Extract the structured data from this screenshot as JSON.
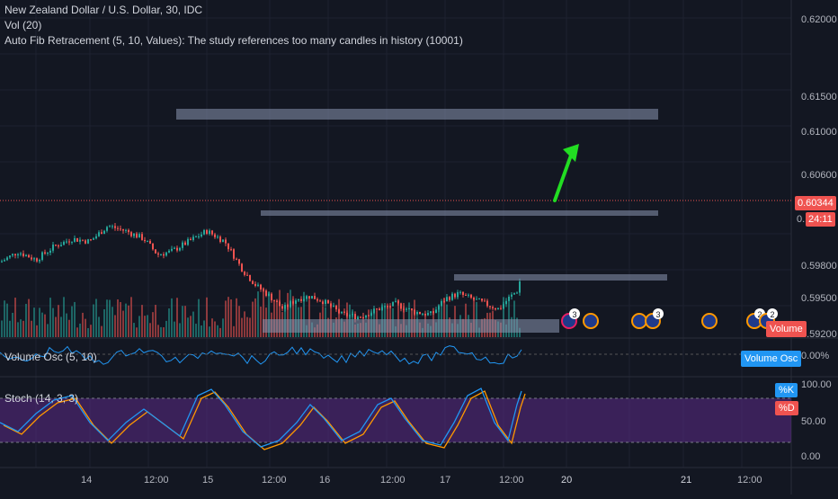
{
  "header": {
    "symbol_line": "New Zealand Dollar / U.S. Dollar, 30, IDC",
    "vol_line": "Vol (20)",
    "fib_line": "Auto Fib Retracement (5, 10, Values): The study references too many candles in history (10001)"
  },
  "price_axis": {
    "ticks": [
      "0.62000",
      "0.61500",
      "0.61000",
      "0.60600",
      "0.59800",
      "0.59500",
      "0.59200"
    ],
    "current_price": "0.60344",
    "countdown": "24:11",
    "partial_tick": "0."
  },
  "volume_badge": "Volume",
  "volume_osc": {
    "label": "Volume Osc (5, 10)",
    "badge": "Volume Osc",
    "tick": "0.00%"
  },
  "stoch": {
    "label": "Stoch (14, 3, 3)",
    "k_badge": "%K",
    "d_badge": "%D",
    "ticks": [
      "100.00",
      "50.00",
      "0.00"
    ]
  },
  "time_axis": {
    "labels": [
      "14",
      "12:00",
      "15",
      "12:00",
      "16",
      "12:00",
      "17",
      "12:00",
      "20",
      "21",
      "12:00"
    ]
  },
  "events": {
    "counts": [
      "3",
      "3",
      "2",
      "2"
    ]
  },
  "colors": {
    "background": "#131722",
    "up": "#26a69a",
    "down": "#ef5350",
    "arrow": "#22dd22",
    "zones": "#8a95b0",
    "stoch_band": "#5b2a86"
  }
}
